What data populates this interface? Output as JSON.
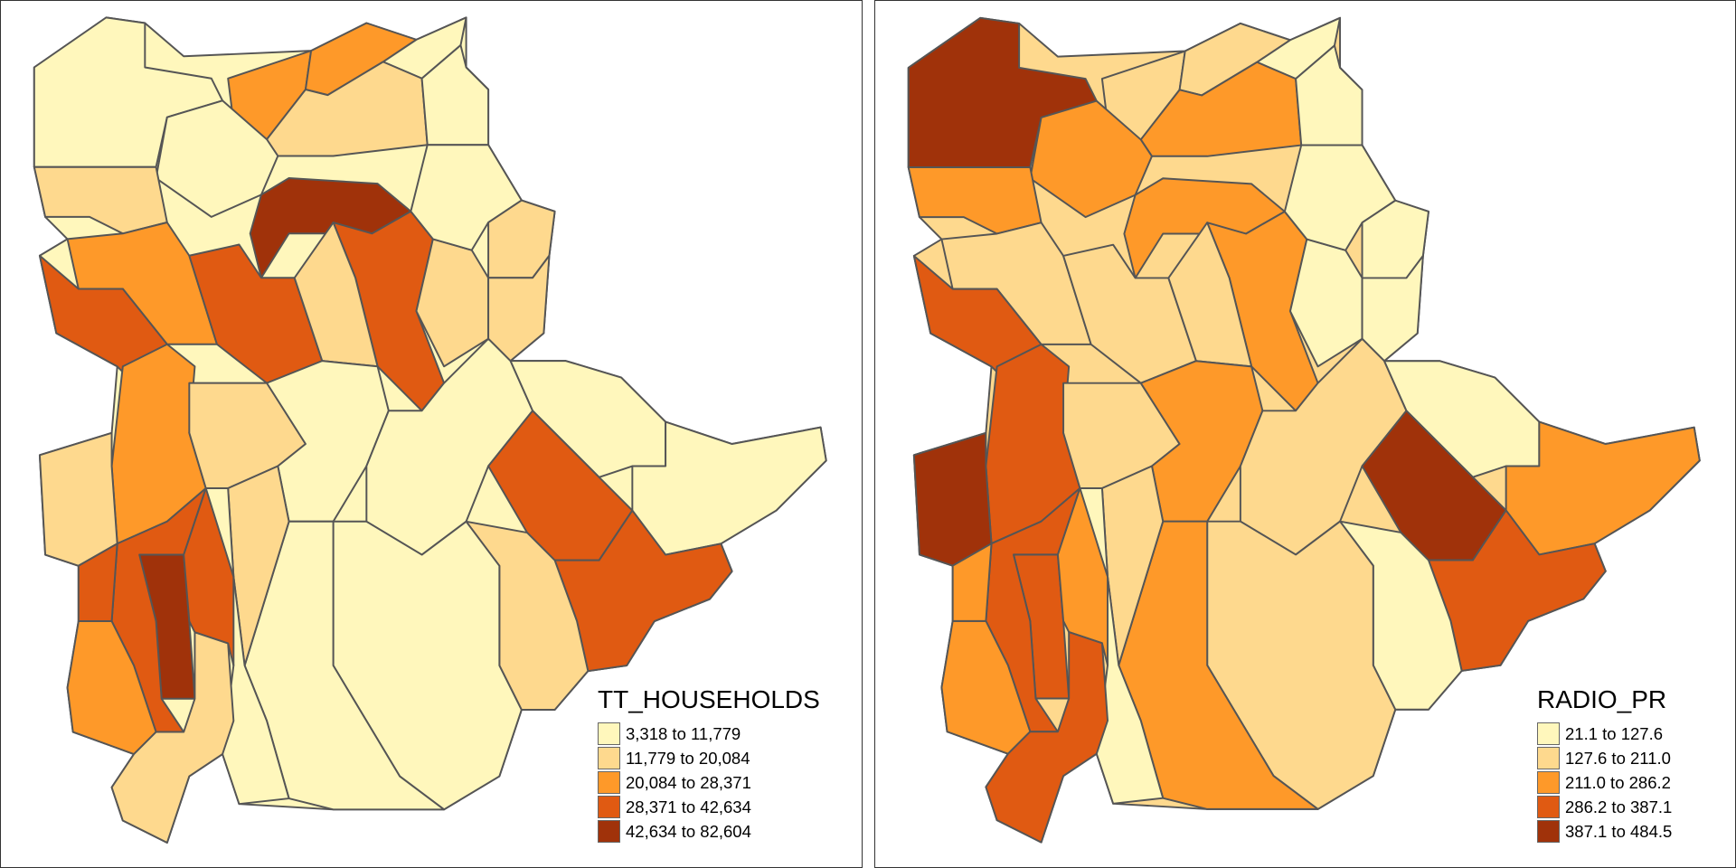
{
  "palette": [
    "#FFF7BC",
    "#FED98E",
    "#FE9929",
    "#E05A12",
    "#A0320A"
  ],
  "border_color": "#555555",
  "maps": [
    {
      "variable": "TT_HOUSEHOLDS",
      "legend": {
        "title": "TT_HOUSEHOLDS",
        "entries": [
          "3,318 to 11,779",
          "11,779 to 20,084",
          "20,084 to 28,371",
          "28,371 to 42,634",
          "42,634 to 82,604"
        ]
      },
      "region_classes": [
        0,
        2,
        2,
        0,
        1,
        0,
        0,
        1,
        4,
        2,
        3,
        3,
        3,
        1,
        1,
        0,
        1,
        1,
        2,
        1,
        1,
        0,
        0,
        0,
        3,
        0,
        3,
        1,
        0,
        0,
        1,
        0,
        4,
        3,
        3,
        2,
        1,
        3
      ]
    },
    {
      "variable": "RADIO_PR",
      "legend": {
        "title": "RADIO_PR",
        "entries": [
          "21.1 to 127.6",
          "127.6 to 211.0",
          "211.0 to 286.2",
          "286.2 to 387.1",
          "387.1 to 484.5"
        ]
      },
      "region_classes": [
        4,
        1,
        1,
        0,
        2,
        0,
        2,
        2,
        2,
        1,
        3,
        1,
        2,
        1,
        0,
        0,
        0,
        0,
        3,
        1,
        4,
        2,
        1,
        0,
        4,
        2,
        3,
        0,
        1,
        2,
        1,
        0,
        3,
        3,
        2,
        2,
        3,
        2
      ]
    }
  ]
}
